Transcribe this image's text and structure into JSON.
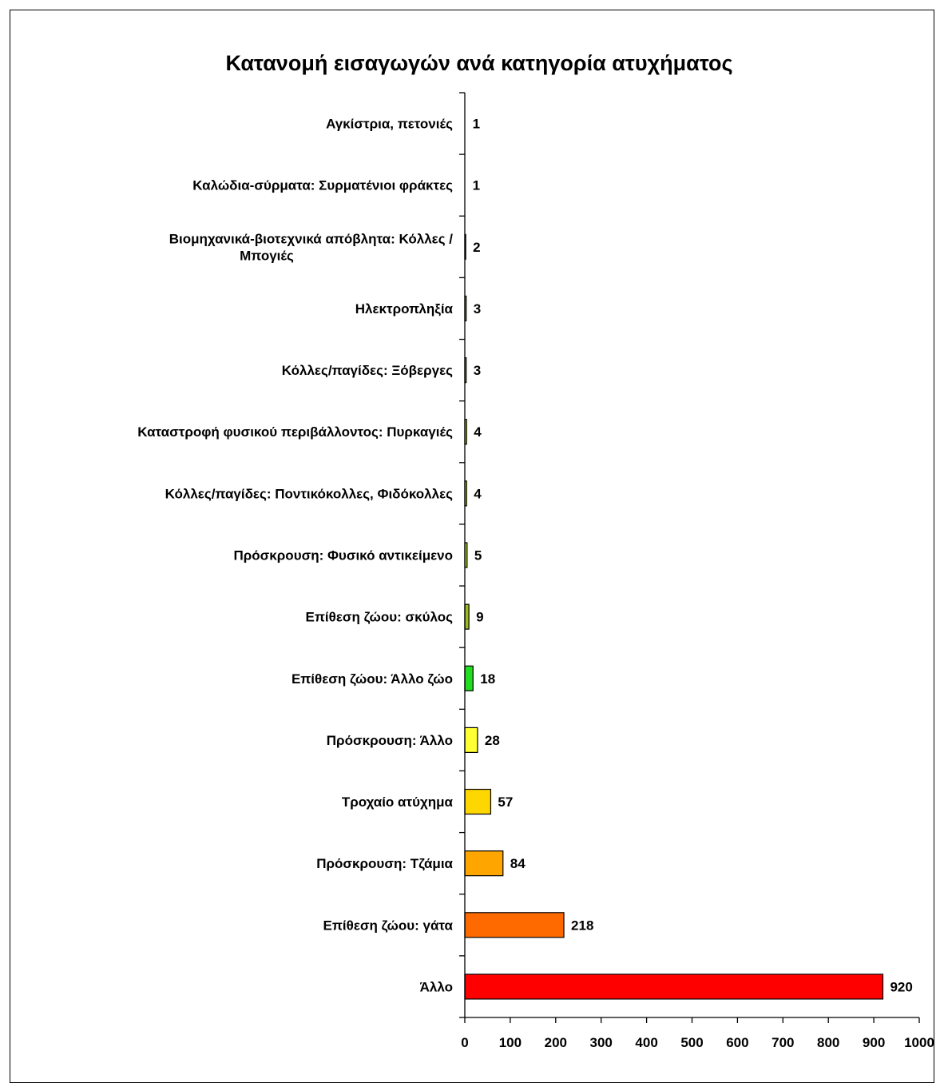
{
  "chart_data": {
    "type": "bar",
    "orientation": "horizontal",
    "title": "Κατανομή εισαγωγών ανά κατηγορία ατυχήματος",
    "xlabel": "",
    "ylabel": "",
    "xlim": [
      0,
      1000
    ],
    "x_ticks": [
      "0",
      "100",
      "200",
      "300",
      "400",
      "500",
      "600",
      "700",
      "800",
      "900",
      "1000"
    ],
    "grid": false,
    "legend": "none",
    "categories": [
      [
        "Αγκίστρια, πετονιές"
      ],
      [
        "Καλώδια-σύρματα: Συρματένιοι φράκτες"
      ],
      [
        "Βιομηχανικά-βιοτεχνικά απόβλητα: Κόλλες /",
        "Μπογιές"
      ],
      [
        "Ηλεκτροπληξία"
      ],
      [
        "Κόλλες/παγίδες: Ξόβεργες"
      ],
      [
        "Καταστροφή φυσικού περιβάλλοντος: Πυρκαγιές"
      ],
      [
        "Κόλλες/παγίδες: Ποντικόκολλες, Φιδόκολλες"
      ],
      [
        "Πρόσκρουση: Φυσικό αντικείμενο"
      ],
      [
        "Επίθεση ζώου: σκύλος"
      ],
      [
        "Επίθεση ζώου: Άλλο ζώο"
      ],
      [
        "Πρόσκρουση: Άλλο"
      ],
      [
        "Τροχαίο ατύχημα"
      ],
      [
        "Πρόσκρουση: Τζάμια"
      ],
      [
        "Επίθεση ζώου: γάτα"
      ],
      [
        "Άλλο"
      ]
    ],
    "values": [
      1,
      1,
      2,
      3,
      3,
      4,
      4,
      5,
      9,
      18,
      28,
      57,
      84,
      218,
      920
    ],
    "value_labels": [
      "1",
      "1",
      "2",
      "3",
      "3",
      "4",
      "4",
      "5",
      "9",
      "18",
      "28",
      "57",
      "84",
      "218",
      "920"
    ],
    "colors": [
      "#b5e61d",
      "#b5e61d",
      "#b5e61d",
      "#b5e61d",
      "#b5e61d",
      "#b5e61d",
      "#b5e61d",
      "#b5e61d",
      "#99bb22",
      "#22dd22",
      "#ffff33",
      "#ffd700",
      "#ffa500",
      "#ff6a00",
      "#ff0000"
    ]
  }
}
